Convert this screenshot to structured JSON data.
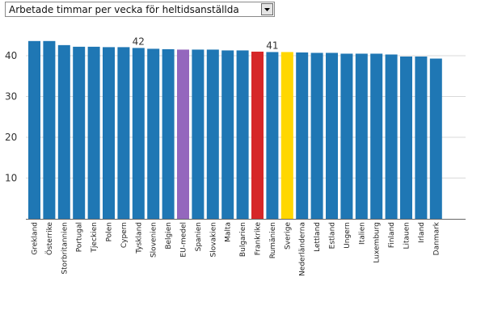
{
  "dropdown": {
    "selected": "Arbetade timmar per vecka för heltidsanställda"
  },
  "icons": {
    "dropdown": "chevron-down-icon"
  },
  "colors": {
    "default": "#1f77b4",
    "eu": "#9467bd",
    "france": "#d62728",
    "sweden": "#ffd700",
    "grid": "#d9d9d9"
  },
  "chart_data": {
    "type": "bar",
    "title": "Arbetade timmar per vecka för heltidsanställda",
    "xlabel": "",
    "ylabel": "",
    "ylim": [
      0,
      44
    ],
    "yticks": [
      10,
      20,
      30,
      40
    ],
    "grid": true,
    "categories": [
      "Grekland",
      "Österrike",
      "Storbritannien",
      "Portugal",
      "Tjeckien",
      "Polen",
      "Cypern",
      "Tyskland",
      "Slovenien",
      "Belgien",
      "EU-medel",
      "Spanien",
      "Slovakien",
      "Malta",
      "Bulgarien",
      "Frankrike",
      "Rumänien",
      "Sverige",
      "Nederländerna",
      "Lettland",
      "Estland",
      "Ungern",
      "Italien",
      "Luxemburg",
      "Finland",
      "Litauen",
      "Irland",
      "Danmark"
    ],
    "values": [
      43.6,
      43.6,
      42.6,
      42.2,
      42.2,
      42.1,
      42.1,
      41.9,
      41.7,
      41.6,
      41.5,
      41.5,
      41.5,
      41.3,
      41.3,
      41.0,
      40.9,
      40.9,
      40.8,
      40.7,
      40.7,
      40.5,
      40.5,
      40.5,
      40.3,
      39.8,
      39.8,
      39.3
    ],
    "colors": [
      "#1f77b4",
      "#1f77b4",
      "#1f77b4",
      "#1f77b4",
      "#1f77b4",
      "#1f77b4",
      "#1f77b4",
      "#1f77b4",
      "#1f77b4",
      "#1f77b4",
      "#9467bd",
      "#1f77b4",
      "#1f77b4",
      "#1f77b4",
      "#1f77b4",
      "#d62728",
      "#1f77b4",
      "#ffd700",
      "#1f77b4",
      "#1f77b4",
      "#1f77b4",
      "#1f77b4",
      "#1f77b4",
      "#1f77b4",
      "#1f77b4",
      "#1f77b4",
      "#1f77b4",
      "#1f77b4"
    ],
    "annotations": [
      {
        "category": "Tyskland",
        "text": "42"
      },
      {
        "category": "Rumänien",
        "text": "41"
      }
    ]
  }
}
